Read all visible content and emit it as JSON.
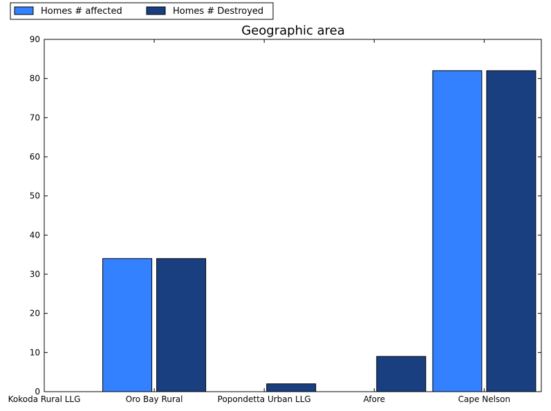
{
  "chart_data": {
    "type": "bar",
    "title": "Geographic area",
    "xlabel": "",
    "ylabel": "",
    "categories": [
      "Kokoda Rural LLG",
      "Oro Bay Rural",
      "Popondetta Urban LLG",
      "Afore",
      "Cape Nelson"
    ],
    "series": [
      {
        "name": "Homes # affected",
        "color": "#3381ff",
        "values": [
          0,
          34,
          0,
          0,
          82
        ]
      },
      {
        "name": "Homes # Destroyed",
        "color": "#1a3f80",
        "values": [
          0,
          34,
          2,
          9,
          82
        ]
      }
    ],
    "ylim": [
      0,
      90
    ],
    "yticks": [
      0,
      10,
      20,
      30,
      40,
      50,
      60,
      70,
      80,
      90
    ],
    "legend_position": "top-left",
    "grid": false
  }
}
